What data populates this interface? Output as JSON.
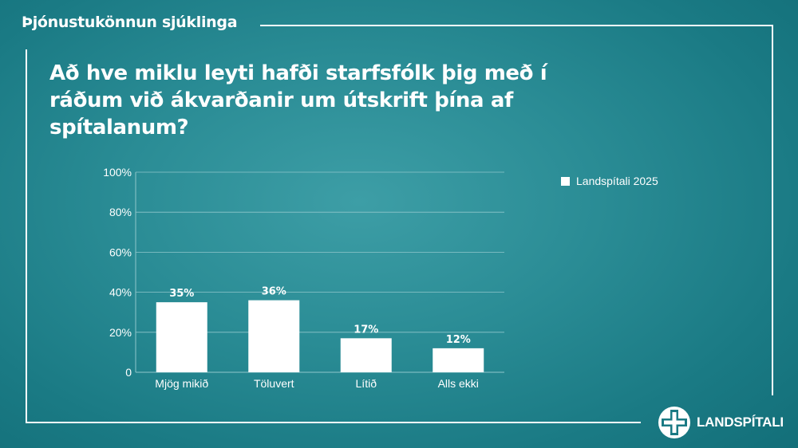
{
  "header": {
    "title": "Þjónustukönnun sjúklinga"
  },
  "question": "Að hve miklu leyti hafði starfsfólk þig með í ráðum við ákvarðanir um útskrift þína af spítalanum?",
  "legend": {
    "label": "Landspítali 2025"
  },
  "logo": {
    "text": "LANDSPÍTALI"
  },
  "colors": {
    "bar": "#ffffff",
    "text": "#ffffff",
    "grid": "#8fc6cb"
  },
  "chart_data": {
    "type": "bar",
    "categories": [
      "Mjög mikið",
      "Töluvert",
      "Lítið",
      "Alls ekki"
    ],
    "series": [
      {
        "name": "Landspítali 2025",
        "values": [
          35,
          36,
          17,
          12
        ],
        "labels": [
          "35%",
          "36%",
          "17%",
          "12%"
        ]
      }
    ],
    "y_ticks": [
      "0",
      "20%",
      "40%",
      "60%",
      "80%",
      "100%"
    ],
    "ylim": [
      0,
      100
    ],
    "grid": true,
    "legend_position": "right"
  }
}
